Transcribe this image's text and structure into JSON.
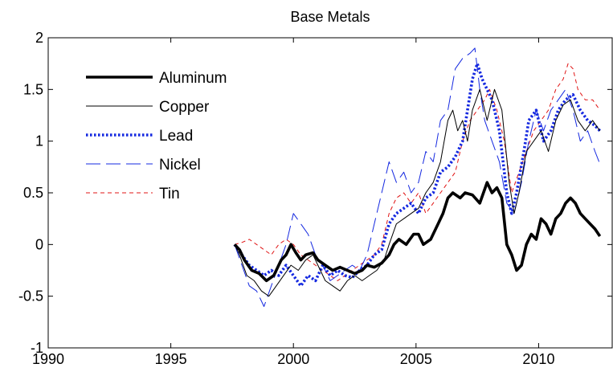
{
  "chart_data": {
    "type": "line",
    "title": "Base Metals",
    "xlabel": "",
    "ylabel": "",
    "xlim": [
      1990,
      2013
    ],
    "ylim": [
      -1,
      2
    ],
    "x_ticks": [
      "1990",
      "1995",
      "2000",
      "2005",
      "2010"
    ],
    "y_ticks": [
      "-1",
      "-0.5",
      "0",
      "0.5",
      "1",
      "1.5",
      "2"
    ],
    "grid": false,
    "legend_position": "top-left",
    "series": [
      {
        "name": "Aluminum",
        "color": "#000000",
        "style": "solid-thick",
        "points": [
          [
            1997.6,
            0.0
          ],
          [
            1997.8,
            -0.05
          ],
          [
            1998.0,
            -0.15
          ],
          [
            1998.3,
            -0.25
          ],
          [
            1998.6,
            -0.28
          ],
          [
            1998.9,
            -0.35
          ],
          [
            1999.2,
            -0.3
          ],
          [
            1999.5,
            -0.15
          ],
          [
            1999.7,
            -0.1
          ],
          [
            1999.9,
            0.0
          ],
          [
            2000.1,
            -0.08
          ],
          [
            2000.3,
            -0.15
          ],
          [
            2000.5,
            -0.1
          ],
          [
            2000.8,
            -0.08
          ],
          [
            2001.0,
            -0.15
          ],
          [
            2001.3,
            -0.2
          ],
          [
            2001.6,
            -0.25
          ],
          [
            2001.9,
            -0.22
          ],
          [
            2002.2,
            -0.25
          ],
          [
            2002.5,
            -0.28
          ],
          [
            2002.8,
            -0.25
          ],
          [
            2003.0,
            -0.2
          ],
          [
            2003.3,
            -0.22
          ],
          [
            2003.6,
            -0.18
          ],
          [
            2003.9,
            -0.1
          ],
          [
            2004.1,
            0.0
          ],
          [
            2004.3,
            0.05
          ],
          [
            2004.6,
            0.0
          ],
          [
            2004.9,
            0.1
          ],
          [
            2005.1,
            0.1
          ],
          [
            2005.3,
            0.0
          ],
          [
            2005.6,
            0.05
          ],
          [
            2005.9,
            0.2
          ],
          [
            2006.1,
            0.3
          ],
          [
            2006.3,
            0.45
          ],
          [
            2006.5,
            0.5
          ],
          [
            2006.8,
            0.45
          ],
          [
            2007.0,
            0.5
          ],
          [
            2007.3,
            0.48
          ],
          [
            2007.6,
            0.4
          ],
          [
            2007.9,
            0.6
          ],
          [
            2008.1,
            0.5
          ],
          [
            2008.3,
            0.55
          ],
          [
            2008.5,
            0.45
          ],
          [
            2008.7,
            0.0
          ],
          [
            2008.9,
            -0.1
          ],
          [
            2009.1,
            -0.25
          ],
          [
            2009.3,
            -0.2
          ],
          [
            2009.5,
            0.0
          ],
          [
            2009.7,
            0.1
          ],
          [
            2009.9,
            0.05
          ],
          [
            2010.1,
            0.25
          ],
          [
            2010.3,
            0.2
          ],
          [
            2010.5,
            0.1
          ],
          [
            2010.7,
            0.25
          ],
          [
            2010.9,
            0.3
          ],
          [
            2011.1,
            0.4
          ],
          [
            2011.3,
            0.45
          ],
          [
            2011.5,
            0.4
          ],
          [
            2011.7,
            0.3
          ],
          [
            2011.9,
            0.25
          ],
          [
            2012.1,
            0.2
          ],
          [
            2012.3,
            0.15
          ],
          [
            2012.5,
            0.08
          ]
        ]
      },
      {
        "name": "Copper",
        "color": "#000000",
        "style": "solid-thin",
        "points": [
          [
            1997.6,
            0.0
          ],
          [
            1997.8,
            -0.1
          ],
          [
            1998.1,
            -0.3
          ],
          [
            1998.4,
            -0.35
          ],
          [
            1998.7,
            -0.45
          ],
          [
            1999.0,
            -0.5
          ],
          [
            1999.3,
            -0.4
          ],
          [
            1999.6,
            -0.3
          ],
          [
            1999.9,
            -0.2
          ],
          [
            2000.2,
            -0.25
          ],
          [
            2000.5,
            -0.15
          ],
          [
            2000.8,
            -0.1
          ],
          [
            2001.0,
            -0.2
          ],
          [
            2001.3,
            -0.35
          ],
          [
            2001.6,
            -0.4
          ],
          [
            2001.9,
            -0.45
          ],
          [
            2002.2,
            -0.35
          ],
          [
            2002.5,
            -0.3
          ],
          [
            2002.8,
            -0.35
          ],
          [
            2003.1,
            -0.3
          ],
          [
            2003.4,
            -0.25
          ],
          [
            2003.7,
            -0.15
          ],
          [
            2003.9,
            0.0
          ],
          [
            2004.2,
            0.2
          ],
          [
            2004.5,
            0.25
          ],
          [
            2004.8,
            0.3
          ],
          [
            2005.1,
            0.35
          ],
          [
            2005.4,
            0.5
          ],
          [
            2005.7,
            0.6
          ],
          [
            2006.0,
            0.8
          ],
          [
            2006.3,
            1.2
          ],
          [
            2006.5,
            1.3
          ],
          [
            2006.7,
            1.1
          ],
          [
            2006.9,
            1.2
          ],
          [
            2007.1,
            1.0
          ],
          [
            2007.3,
            1.3
          ],
          [
            2007.6,
            1.5
          ],
          [
            2007.9,
            1.2
          ],
          [
            2008.2,
            1.5
          ],
          [
            2008.5,
            1.3
          ],
          [
            2008.8,
            0.6
          ],
          [
            2009.0,
            0.3
          ],
          [
            2009.2,
            0.5
          ],
          [
            2009.5,
            0.9
          ],
          [
            2009.8,
            1.0
          ],
          [
            2010.1,
            1.1
          ],
          [
            2010.4,
            0.9
          ],
          [
            2010.7,
            1.2
          ],
          [
            2011.0,
            1.35
          ],
          [
            2011.3,
            1.4
          ],
          [
            2011.6,
            1.2
          ],
          [
            2011.9,
            1.1
          ],
          [
            2012.2,
            1.2
          ],
          [
            2012.5,
            1.1
          ]
        ]
      },
      {
        "name": "Lead",
        "color": "#1428e0",
        "style": "dotted-thick",
        "points": [
          [
            1997.6,
            0.0
          ],
          [
            1997.9,
            -0.1
          ],
          [
            1998.2,
            -0.2
          ],
          [
            1998.5,
            -0.25
          ],
          [
            1998.8,
            -0.3
          ],
          [
            1999.1,
            -0.25
          ],
          [
            1999.4,
            -0.3
          ],
          [
            1999.7,
            -0.2
          ],
          [
            2000.0,
            -0.3
          ],
          [
            2000.3,
            -0.4
          ],
          [
            2000.6,
            -0.3
          ],
          [
            2000.9,
            -0.35
          ],
          [
            2001.2,
            -0.2
          ],
          [
            2001.5,
            -0.3
          ],
          [
            2001.8,
            -0.25
          ],
          [
            2002.1,
            -0.3
          ],
          [
            2002.4,
            -0.32
          ],
          [
            2002.7,
            -0.25
          ],
          [
            2003.0,
            -0.2
          ],
          [
            2003.3,
            -0.1
          ],
          [
            2003.6,
            -0.05
          ],
          [
            2003.9,
            0.2
          ],
          [
            2004.2,
            0.3
          ],
          [
            2004.5,
            0.35
          ],
          [
            2004.8,
            0.4
          ],
          [
            2005.1,
            0.3
          ],
          [
            2005.4,
            0.45
          ],
          [
            2005.7,
            0.5
          ],
          [
            2006.0,
            0.7
          ],
          [
            2006.3,
            0.75
          ],
          [
            2006.6,
            0.85
          ],
          [
            2006.9,
            1.0
          ],
          [
            2007.1,
            1.3
          ],
          [
            2007.3,
            1.6
          ],
          [
            2007.5,
            1.75
          ],
          [
            2007.7,
            1.6
          ],
          [
            2007.9,
            1.5
          ],
          [
            2008.1,
            1.4
          ],
          [
            2008.4,
            1.1
          ],
          [
            2008.7,
            0.5
          ],
          [
            2008.9,
            0.3
          ],
          [
            2009.1,
            0.5
          ],
          [
            2009.4,
            0.9
          ],
          [
            2009.6,
            1.2
          ],
          [
            2009.9,
            1.3
          ],
          [
            2010.2,
            1.0
          ],
          [
            2010.5,
            1.1
          ],
          [
            2010.8,
            1.3
          ],
          [
            2011.1,
            1.4
          ],
          [
            2011.4,
            1.45
          ],
          [
            2011.7,
            1.3
          ],
          [
            2012.0,
            1.2
          ],
          [
            2012.3,
            1.15
          ],
          [
            2012.5,
            1.1
          ]
        ]
      },
      {
        "name": "Nickel",
        "color": "#1428e0",
        "style": "dashed-long",
        "points": [
          [
            1997.6,
            0.0
          ],
          [
            1997.9,
            -0.2
          ],
          [
            1998.2,
            -0.4
          ],
          [
            1998.5,
            -0.45
          ],
          [
            1998.8,
            -0.6
          ],
          [
            1999.1,
            -0.4
          ],
          [
            1999.4,
            -0.2
          ],
          [
            1999.7,
            0.0
          ],
          [
            2000.0,
            0.3
          ],
          [
            2000.3,
            0.2
          ],
          [
            2000.6,
            0.1
          ],
          [
            2000.9,
            -0.1
          ],
          [
            2001.2,
            -0.2
          ],
          [
            2001.5,
            -0.35
          ],
          [
            2001.8,
            -0.3
          ],
          [
            2002.1,
            -0.25
          ],
          [
            2002.4,
            -0.2
          ],
          [
            2002.7,
            -0.25
          ],
          [
            2003.0,
            -0.1
          ],
          [
            2003.3,
            0.2
          ],
          [
            2003.6,
            0.5
          ],
          [
            2003.9,
            0.8
          ],
          [
            2004.2,
            0.6
          ],
          [
            2004.5,
            0.7
          ],
          [
            2004.8,
            0.5
          ],
          [
            2005.1,
            0.6
          ],
          [
            2005.4,
            0.9
          ],
          [
            2005.7,
            0.8
          ],
          [
            2006.0,
            1.2
          ],
          [
            2006.3,
            1.3
          ],
          [
            2006.6,
            1.7
          ],
          [
            2006.9,
            1.8
          ],
          [
            2007.2,
            1.85
          ],
          [
            2007.4,
            1.9
          ],
          [
            2007.6,
            1.5
          ],
          [
            2007.8,
            1.2
          ],
          [
            2008.1,
            1.0
          ],
          [
            2008.4,
            0.8
          ],
          [
            2008.7,
            0.4
          ],
          [
            2009.0,
            0.3
          ],
          [
            2009.3,
            0.6
          ],
          [
            2009.6,
            1.0
          ],
          [
            2009.9,
            1.3
          ],
          [
            2010.2,
            1.1
          ],
          [
            2010.5,
            1.3
          ],
          [
            2010.8,
            1.4
          ],
          [
            2011.1,
            1.5
          ],
          [
            2011.4,
            1.3
          ],
          [
            2011.7,
            1.0
          ],
          [
            2012.0,
            1.1
          ],
          [
            2012.3,
            0.9
          ],
          [
            2012.5,
            0.78
          ]
        ]
      },
      {
        "name": "Tin",
        "color": "#e01414",
        "style": "dashed-short",
        "points": [
          [
            1997.6,
            0.0
          ],
          [
            1997.9,
            0.02
          ],
          [
            1998.2,
            0.05
          ],
          [
            1998.5,
            0.0
          ],
          [
            1998.8,
            -0.05
          ],
          [
            1999.1,
            -0.1
          ],
          [
            1999.4,
            0.0
          ],
          [
            1999.7,
            0.05
          ],
          [
            2000.0,
            0.0
          ],
          [
            2000.3,
            -0.1
          ],
          [
            2000.6,
            -0.15
          ],
          [
            2000.9,
            -0.2
          ],
          [
            2001.2,
            -0.25
          ],
          [
            2001.5,
            -0.3
          ],
          [
            2001.8,
            -0.35
          ],
          [
            2002.1,
            -0.3
          ],
          [
            2002.4,
            -0.25
          ],
          [
            2002.7,
            -0.2
          ],
          [
            2003.0,
            -0.15
          ],
          [
            2003.3,
            -0.1
          ],
          [
            2003.6,
            0.0
          ],
          [
            2003.9,
            0.3
          ],
          [
            2004.2,
            0.45
          ],
          [
            2004.5,
            0.5
          ],
          [
            2004.8,
            0.4
          ],
          [
            2005.1,
            0.5
          ],
          [
            2005.4,
            0.3
          ],
          [
            2005.7,
            0.4
          ],
          [
            2006.0,
            0.5
          ],
          [
            2006.3,
            0.6
          ],
          [
            2006.6,
            0.7
          ],
          [
            2006.9,
            1.0
          ],
          [
            2007.2,
            1.2
          ],
          [
            2007.5,
            1.3
          ],
          [
            2007.8,
            1.4
          ],
          [
            2008.0,
            1.5
          ],
          [
            2008.3,
            1.3
          ],
          [
            2008.6,
            1.0
          ],
          [
            2008.9,
            0.5
          ],
          [
            2009.2,
            0.7
          ],
          [
            2009.5,
            0.9
          ],
          [
            2009.8,
            1.1
          ],
          [
            2010.1,
            1.2
          ],
          [
            2010.4,
            1.3
          ],
          [
            2010.7,
            1.5
          ],
          [
            2011.0,
            1.6
          ],
          [
            2011.2,
            1.75
          ],
          [
            2011.4,
            1.7
          ],
          [
            2011.6,
            1.5
          ],
          [
            2011.9,
            1.4
          ],
          [
            2012.2,
            1.4
          ],
          [
            2012.5,
            1.3
          ]
        ]
      }
    ]
  }
}
